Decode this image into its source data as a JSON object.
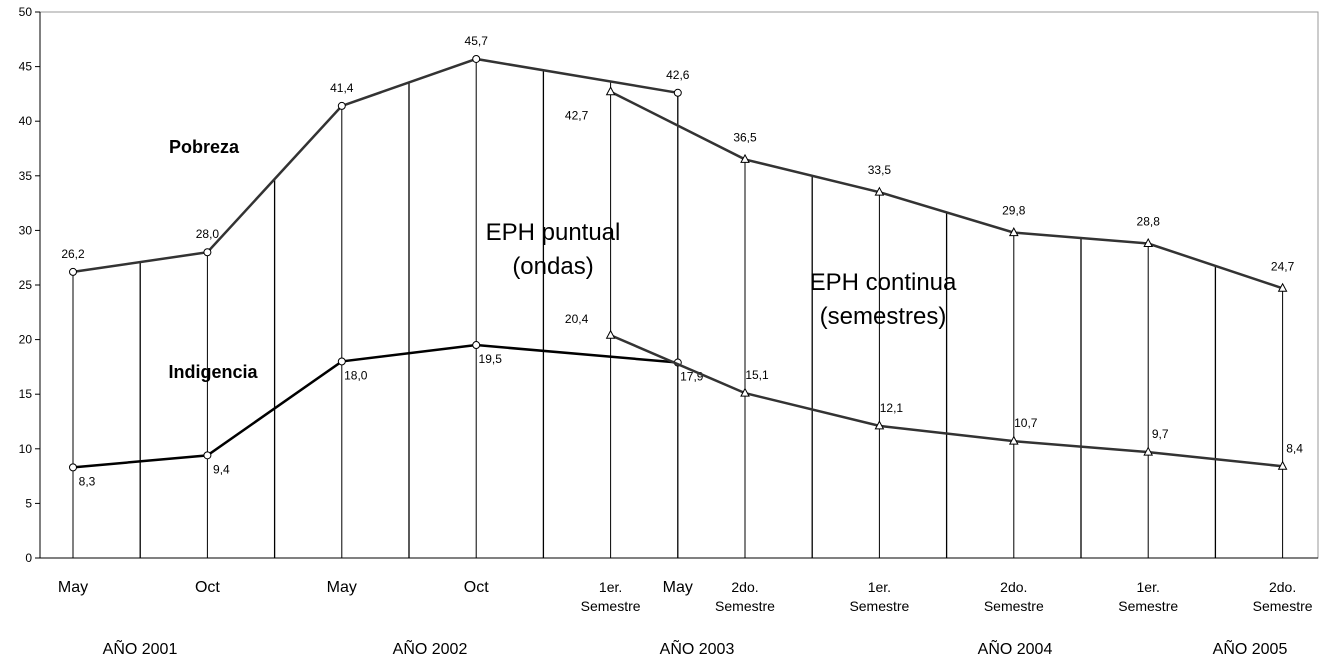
{
  "chart_data": {
    "type": "line",
    "categories": [
      "May",
      "Oct",
      "May",
      "Oct",
      "1er. Semestre",
      "May",
      "2do. Semestre",
      "1er. Semestre",
      "2do. Semestre",
      "1er. Semestre",
      "2do. Semestre"
    ],
    "year_labels": [
      "AÑO 2001",
      "AÑO 2002",
      "AÑO 2003",
      "AÑO 2004",
      "AÑO 2005"
    ],
    "ylim": [
      0,
      50
    ],
    "yticks": [
      0,
      5,
      10,
      15,
      20,
      25,
      30,
      35,
      40,
      45,
      50
    ],
    "annotations": [
      "Pobreza",
      "Indigencia",
      "EPH puntual",
      "(ondas)",
      "EPH continua",
      "(semestres)"
    ],
    "series": [
      {
        "name": "Pobreza EPH puntual",
        "color": "#333333",
        "marker": "circle",
        "values": [
          26.2,
          28.0,
          41.4,
          45.7,
          null,
          42.6,
          null,
          null,
          null,
          null,
          null
        ],
        "value_labels": [
          "26,2",
          "28,0",
          "41,4",
          "45,7",
          null,
          "42,6",
          null,
          null,
          null,
          null,
          null
        ]
      },
      {
        "name": "Pobreza EPH continua",
        "color": "#333333",
        "marker": "triangle",
        "values": [
          null,
          null,
          null,
          null,
          42.7,
          null,
          36.5,
          33.5,
          29.8,
          28.8,
          24.7
        ],
        "value_labels": [
          null,
          null,
          null,
          null,
          "42,7",
          null,
          "36,5",
          "33,5",
          "29,8",
          "28,8",
          "24,7"
        ]
      },
      {
        "name": "Indigencia EPH puntual",
        "color": "#000000",
        "marker": "circle",
        "values": [
          8.3,
          9.4,
          18.0,
          19.5,
          null,
          17.9,
          null,
          null,
          null,
          null,
          null
        ],
        "value_labels": [
          "8,3",
          "9,4",
          "18,0",
          "19,5",
          null,
          "17,9",
          null,
          null,
          null,
          null,
          null
        ]
      },
      {
        "name": "Indigencia EPH continua",
        "color": "#333333",
        "marker": "triangle",
        "values": [
          null,
          null,
          null,
          null,
          20.4,
          null,
          15.1,
          12.1,
          10.7,
          9.7,
          8.4
        ],
        "value_labels": [
          null,
          null,
          null,
          null,
          "20,4",
          null,
          "15,1",
          "12,1",
          "10,7",
          "9,7",
          "8,4"
        ]
      }
    ]
  }
}
